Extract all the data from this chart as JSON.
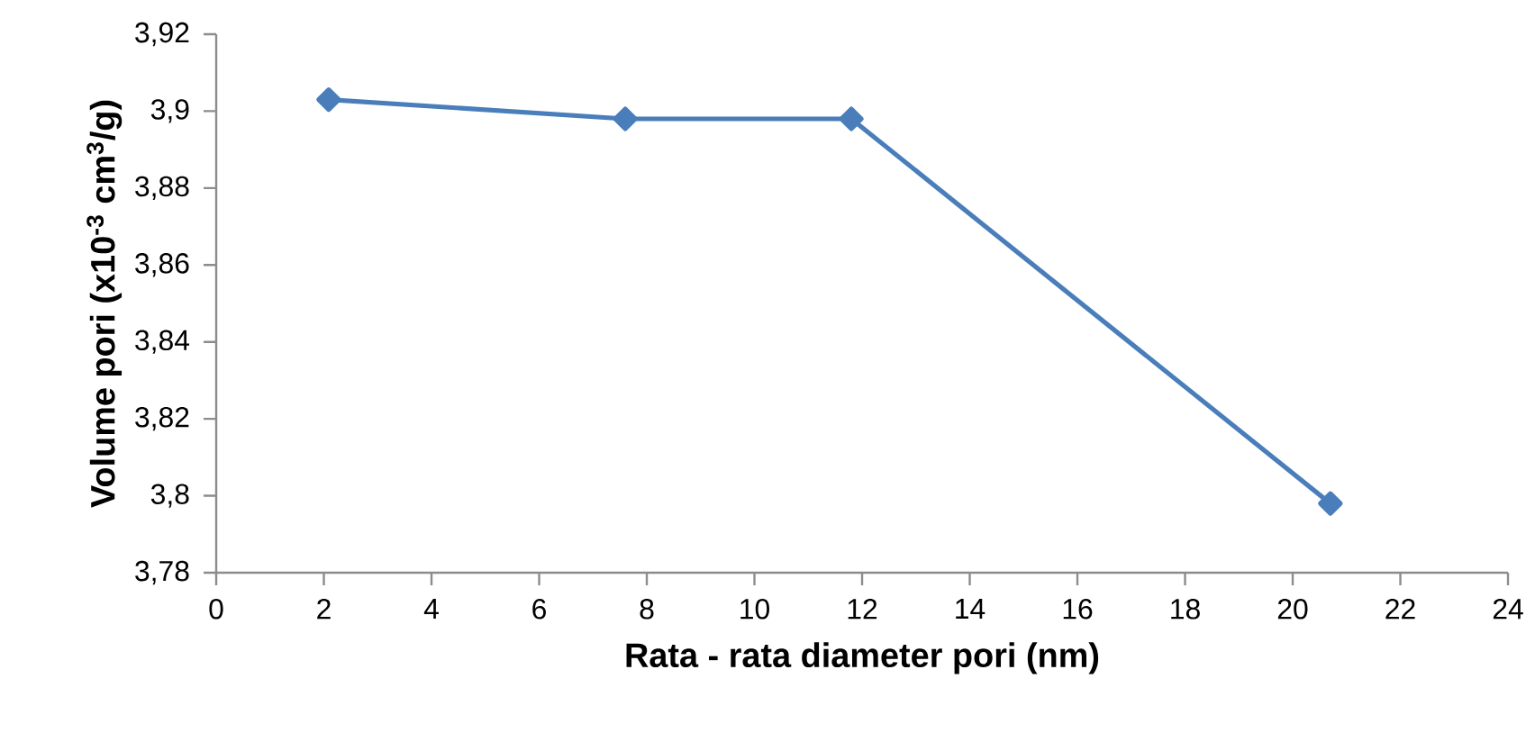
{
  "chart_data": {
    "type": "line",
    "xlabel": "Rata - rata diameter pori (nm)",
    "ylabel": "Volume pori (x10$^{-3}$ cm$^{3}$/g)",
    "x": [
      2.09,
      7.6,
      11.8,
      20.7
    ],
    "series": [
      {
        "color": "#4a7ebb",
        "values": [
          3.903,
          3.898,
          3.898,
          3.798
        ]
      }
    ],
    "xlim": [
      0,
      24
    ],
    "xticks": [
      0,
      2,
      4,
      6,
      8,
      10,
      12,
      14,
      16,
      18,
      20,
      22,
      24
    ],
    "ylim": [
      3.78,
      3.92
    ],
    "yticks": [
      {
        "value": 3.78,
        "label": "3,78"
      },
      {
        "value": 3.8,
        "label": "3,8"
      },
      {
        "value": 3.82,
        "label": "3,82"
      },
      {
        "value": 3.84,
        "label": "3,84"
      },
      {
        "value": 3.86,
        "label": "3,86"
      },
      {
        "value": 3.88,
        "label": "3,88"
      },
      {
        "value": 3.9,
        "label": "3,9"
      },
      {
        "value": 3.92,
        "label": "3,92"
      }
    ],
    "grid": false,
    "marker": "diamond",
    "line_style": "solid"
  }
}
